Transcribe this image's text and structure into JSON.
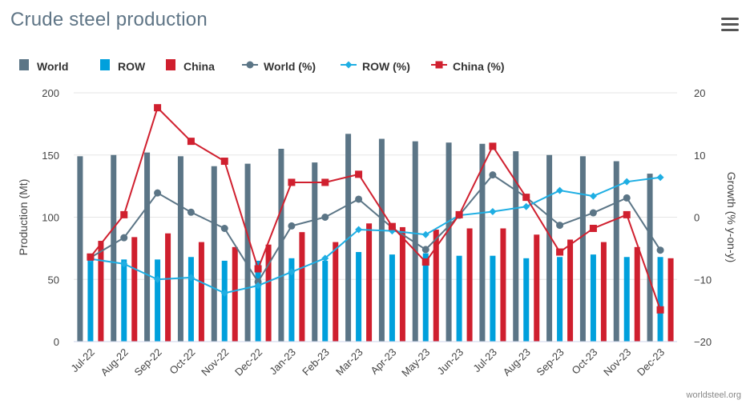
{
  "page": {
    "title": "Crude steel production",
    "credit": "worldsteel.org",
    "menu_icon": "hamburger-menu-icon"
  },
  "colors": {
    "world": "#5b7586",
    "row": "#00a0dc",
    "china": "#cf1f2e",
    "world_line": "#5b7586",
    "row_line": "#1eaee3",
    "china_line": "#d0202f",
    "grid": "#e6e6e6",
    "axis_text": "#444444"
  },
  "legend": [
    {
      "label": "World",
      "symbol": "bar",
      "color_key": "world"
    },
    {
      "label": "ROW",
      "symbol": "bar",
      "color_key": "row"
    },
    {
      "label": "China",
      "symbol": "bar",
      "color_key": "china"
    },
    {
      "label": "World (%)",
      "symbol": "line-circle",
      "color_key": "world_line"
    },
    {
      "label": "ROW (%)",
      "symbol": "line-diamond",
      "color_key": "row_line"
    },
    {
      "label": "China (%)",
      "symbol": "line-square",
      "color_key": "china_line"
    }
  ],
  "chart_data": {
    "type": "bar",
    "title": "Crude steel production",
    "categories": [
      "Jul-22",
      "Aug-22",
      "Sep-22",
      "Oct-22",
      "Nov-22",
      "Dec-22",
      "Jan-23",
      "Feb-23",
      "Mar-23",
      "Apr-23",
      "May-23",
      "Jun-23",
      "Jul-23",
      "Aug-23",
      "Sep-23",
      "Oct-23",
      "Nov-23",
      "Dec-23"
    ],
    "ylabel": "Production (Mt)",
    "ylim": [
      0,
      200
    ],
    "yticks": [
      "0",
      "50",
      "100",
      "150",
      "200"
    ],
    "y2label": "Growth (% y-on-y)",
    "y2lim": [
      -20,
      20
    ],
    "y2ticks": [
      "−20",
      "−10",
      "0",
      "10",
      "20"
    ],
    "y2tick_values": [
      -20,
      -10,
      0,
      10,
      20
    ],
    "ytick_values": [
      0,
      50,
      100,
      150,
      200
    ],
    "series": [
      {
        "name": "World",
        "kind": "bar",
        "axis": "left",
        "values": [
          149,
          150,
          152,
          149,
          141,
          143,
          155,
          144,
          167,
          163,
          161,
          160,
          159,
          153,
          150,
          149,
          145,
          135
        ]
      },
      {
        "name": "ROW",
        "kind": "bar",
        "axis": "left",
        "values": [
          68,
          66,
          66,
          68,
          65,
          65,
          67,
          65,
          72,
          70,
          71,
          69,
          69,
          67,
          68,
          70,
          68,
          68
        ]
      },
      {
        "name": "China",
        "kind": "bar",
        "axis": "left",
        "values": [
          81,
          84,
          87,
          80,
          76,
          78,
          88,
          80,
          95,
          92,
          90,
          91,
          91,
          86,
          82,
          80,
          76,
          67
        ]
      },
      {
        "name": "World (%)",
        "kind": "line",
        "axis": "right",
        "marker": "circle",
        "values": [
          -6.5,
          -3.3,
          3.9,
          0.8,
          -1.8,
          -10.4,
          -1.4,
          0.0,
          2.9,
          -1.7,
          -5.2,
          0.3,
          6.8,
          3.2,
          -1.3,
          0.7,
          3.1,
          -5.3
        ]
      },
      {
        "name": "ROW (%)",
        "kind": "line",
        "axis": "right",
        "marker": "diamond",
        "values": [
          -6.7,
          -7.5,
          -10.0,
          -9.7,
          -12.2,
          -11.0,
          -8.8,
          -6.6,
          -2.0,
          -2.2,
          -2.8,
          0.3,
          0.9,
          1.7,
          4.3,
          3.4,
          5.7,
          6.4
        ]
      },
      {
        "name": "China (%)",
        "kind": "line",
        "axis": "right",
        "marker": "square",
        "values": [
          -6.4,
          0.4,
          17.6,
          12.2,
          9.0,
          -8.3,
          5.6,
          5.6,
          6.9,
          -1.5,
          -7.2,
          0.4,
          11.4,
          3.2,
          -5.6,
          -1.8,
          0.4,
          -14.9
        ]
      }
    ]
  }
}
